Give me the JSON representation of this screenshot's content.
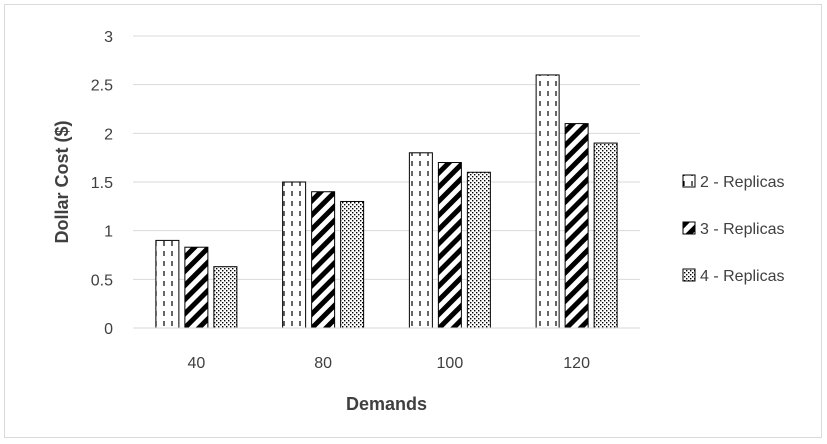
{
  "chart_data": {
    "type": "bar",
    "title": "",
    "xlabel": "Demands",
    "ylabel": "Dollar Cost ($)",
    "categories": [
      "40",
      "80",
      "100",
      "120"
    ],
    "ylim": [
      0,
      3
    ],
    "yticks": [
      "0",
      "0.5",
      "1",
      "1.5",
      "2",
      "2.5",
      "3"
    ],
    "grid": true,
    "legend_position": "right",
    "series": [
      {
        "name": "2 - Replicas",
        "values": [
          0.9,
          1.5,
          1.8,
          2.6
        ],
        "pattern": "dashed-vertical"
      },
      {
        "name": "3 - Replicas",
        "values": [
          0.83,
          1.4,
          1.7,
          2.1
        ],
        "pattern": "diagonal-stripes"
      },
      {
        "name": "4 - Replicas",
        "values": [
          0.63,
          1.3,
          1.6,
          1.9
        ],
        "pattern": "dotted"
      }
    ]
  }
}
